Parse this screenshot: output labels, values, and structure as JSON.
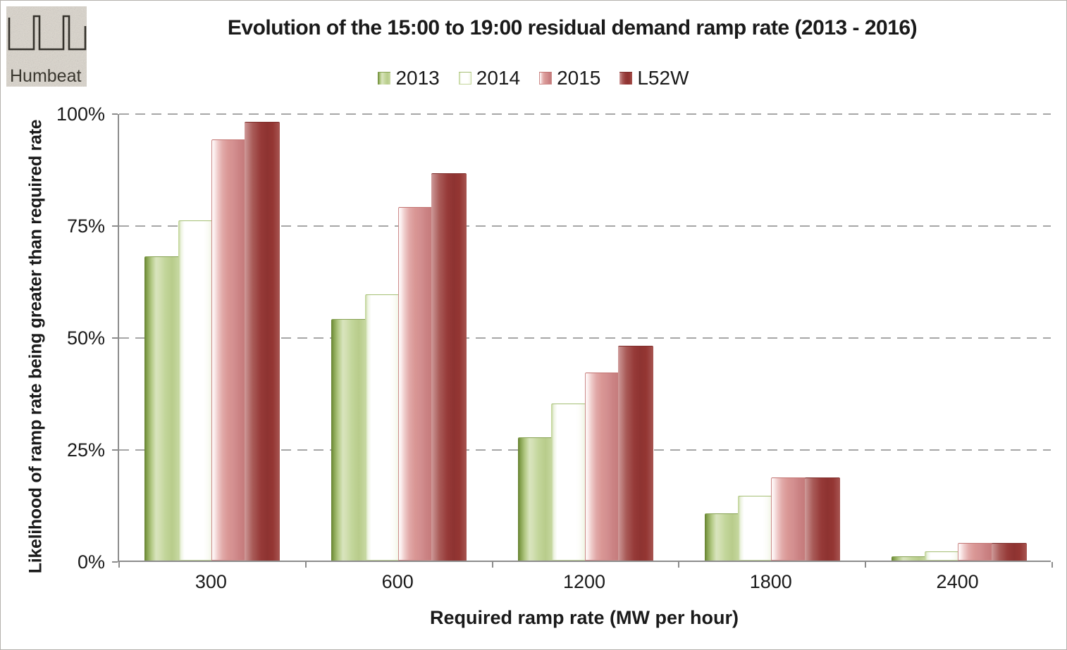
{
  "header": {
    "logo_text": "Humbeat"
  },
  "chart_data": {
    "type": "bar",
    "title": "Evolution of the 15:00 to 19:00 residual demand ramp rate (2013 - 2016)",
    "categories": [
      "300",
      "600",
      "1200",
      "1800",
      "2400"
    ],
    "series": [
      {
        "name": "2013",
        "color": "#9bbb59",
        "values": [
          68,
          54,
          27.5,
          10.5,
          1
        ]
      },
      {
        "name": "2014",
        "color": "#ffffff",
        "values": [
          76,
          59.5,
          35,
          14.5,
          2
        ]
      },
      {
        "name": "2015",
        "color": "#d99694",
        "values": [
          94,
          79,
          42,
          18.5,
          4
        ]
      },
      {
        "name": "L52W",
        "color": "#953735",
        "values": [
          98,
          86.5,
          48,
          18.5,
          4
        ]
      }
    ],
    "xlabel": "Required ramp rate (MW per hour)",
    "ylabel": "Likelihood of ramp rate being greater than required rate",
    "yticks": [
      "0%",
      "25%",
      "50%",
      "75%",
      "100%"
    ],
    "ylim": [
      0,
      100
    ],
    "grid": "horizontal-dashed",
    "gridline_color": "#a6a6a6",
    "axis_color": "#8c8c8c",
    "legend_position": "top"
  }
}
